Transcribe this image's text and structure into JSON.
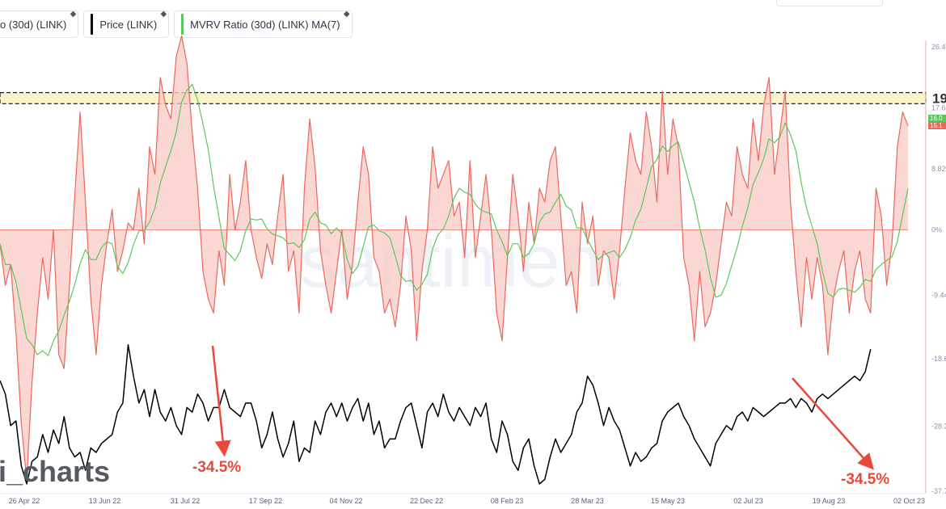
{
  "legend": [
    {
      "label": "o (30d) (LINK)",
      "color": "#e8695f"
    },
    {
      "label": "Price (LINK)",
      "color": "#000000"
    },
    {
      "label": "MVRV Ratio (30d) (LINK) MA(7)",
      "color": "#5cc85a"
    }
  ],
  "legend_icon": "ethereum-icon",
  "watermark": "santiment",
  "brand_text": "i_charts",
  "annotations": [
    {
      "label": "-34.5%",
      "color": "#e8493a"
    },
    {
      "label": "-34.5%",
      "color": "#e8493a"
    }
  ],
  "right_edge_label": "19",
  "current_values": [
    {
      "label": "16.0",
      "color": "#5cc85a"
    },
    {
      "label": "15.1",
      "color": "#e8695f"
    }
  ],
  "chart_data": {
    "type": "line",
    "x_tick_labels": [
      "26 Apr 22",
      "13 Jun 22",
      "31 Jul 22",
      "17 Sep 22",
      "04 Nov 22",
      "22 Dec 22",
      "08 Feb 23",
      "28 Mar 23",
      "15 May 23",
      "02 Jul 23",
      "19 Aug 23",
      "02 Oct 23"
    ],
    "y_tick_labels": [
      "26.4",
      "17.6",
      "8.82",
      "0%",
      "-9.44",
      "-18.6",
      "-28.3",
      "-37.7"
    ],
    "ylim": [
      -37.7,
      26.4
    ],
    "highlight_band": [
      18.2,
      19.8
    ],
    "series": [
      {
        "name": "o (30d) (LINK)",
        "color": "#e8695f",
        "values": [
          -2,
          -8,
          -5,
          -15,
          -28,
          -36,
          -22,
          -12,
          -4,
          -10,
          0,
          -18,
          -20,
          -8,
          5,
          17,
          4,
          -10,
          -18,
          -8,
          -2,
          3,
          -6,
          -3,
          1,
          0,
          6,
          -2,
          12,
          8,
          22,
          18,
          16,
          25,
          28,
          24,
          14,
          6,
          -6,
          -10,
          -12,
          -3,
          -8,
          8,
          0,
          4,
          10,
          0,
          -4,
          -7,
          -2,
          -5,
          2,
          8,
          -6,
          -3,
          -12,
          6,
          16,
          9,
          -3,
          -8,
          -12,
          -6,
          0,
          -10,
          -5,
          4,
          12,
          8,
          -4,
          -6,
          -12,
          -10,
          -14,
          -8,
          2,
          -3,
          -16,
          -6,
          0,
          12,
          6,
          8,
          10,
          2,
          4,
          -4,
          10,
          -4,
          2,
          8,
          0,
          -12,
          -16,
          -4,
          8,
          2,
          -6,
          4,
          -2,
          6,
          4,
          10,
          12,
          2,
          -8,
          -6,
          -12,
          4,
          -2,
          2,
          -8,
          -3,
          -4,
          -10,
          -3,
          6,
          14,
          10,
          8,
          17,
          12,
          4,
          20,
          8,
          16,
          12,
          -4,
          -8,
          -16,
          -6,
          -14,
          -12,
          -8,
          -2,
          4,
          2,
          12,
          8,
          6,
          16,
          10,
          18,
          22,
          8,
          14,
          20,
          4,
          -6,
          -14,
          -4,
          -10,
          -4,
          -8,
          -18,
          -10,
          -6,
          -3,
          -12,
          -6,
          -3,
          -10,
          -12,
          6,
          2,
          -8,
          -2,
          12,
          17,
          15
        ]
      },
      {
        "name": "Price (LINK)",
        "color": "#000000",
        "values": [
          8.1,
          7.8,
          7.1,
          7.2,
          6.2,
          5.8,
          6.3,
          6.4,
          6.9,
          6.5,
          7.0,
          6.7,
          7.3,
          6.6,
          6.4,
          6.5,
          6.1,
          6.6,
          6.5,
          6.7,
          6.8,
          6.9,
          7.4,
          7.6,
          8.9,
          8.2,
          7.6,
          7.9,
          7.3,
          7.9,
          7.4,
          7.2,
          7.5,
          7.1,
          6.9,
          7.5,
          7.4,
          7.8,
          7.6,
          7.2,
          7.5,
          7.5,
          7.9,
          7.5,
          7.4,
          7.3,
          7.6,
          7.6,
          7.2,
          6.6,
          6.9,
          7.4,
          6.8,
          6.4,
          6.7,
          7.2,
          6.3,
          6.6,
          6.5,
          7.2,
          6.9,
          7.4,
          7.6,
          7.3,
          7.6,
          7.2,
          7.5,
          7.7,
          7.2,
          7.6,
          6.9,
          7.2,
          6.6,
          6.8,
          6.8,
          7.2,
          7.5,
          7.6,
          7.1,
          6.6,
          7.4,
          7.6,
          7.3,
          7.8,
          7.4,
          7.2,
          7.5,
          7.3,
          7.1,
          7.5,
          7.3,
          7.6,
          6.8,
          6.5,
          7.2,
          6.9,
          6.3,
          6.1,
          6.6,
          6.8,
          6.2,
          5.8,
          5.9,
          6.4,
          6.8,
          6.5,
          6.7,
          6.9,
          7.4,
          7.6,
          8.2,
          8.0,
          7.6,
          7.1,
          7.5,
          7.2,
          7.0,
          6.6,
          6.2,
          6.5,
          6.3,
          6.4,
          6.6,
          6.7,
          7.2,
          7.4,
          7.5,
          7.6,
          7.3,
          7.1,
          6.8,
          6.6,
          6.4,
          6.2,
          6.7,
          6.9,
          7.1,
          7.0,
          7.3,
          7.4,
          7.2,
          7.5,
          7.4,
          7.3,
          7.4,
          7.5,
          7.6,
          7.6,
          7.7,
          7.5,
          7.7,
          7.6,
          7.4,
          7.7,
          7.8,
          7.7,
          7.8,
          7.9,
          8.0,
          8.1,
          8.2,
          8.1,
          8.3,
          8.8
        ]
      }
    ]
  }
}
